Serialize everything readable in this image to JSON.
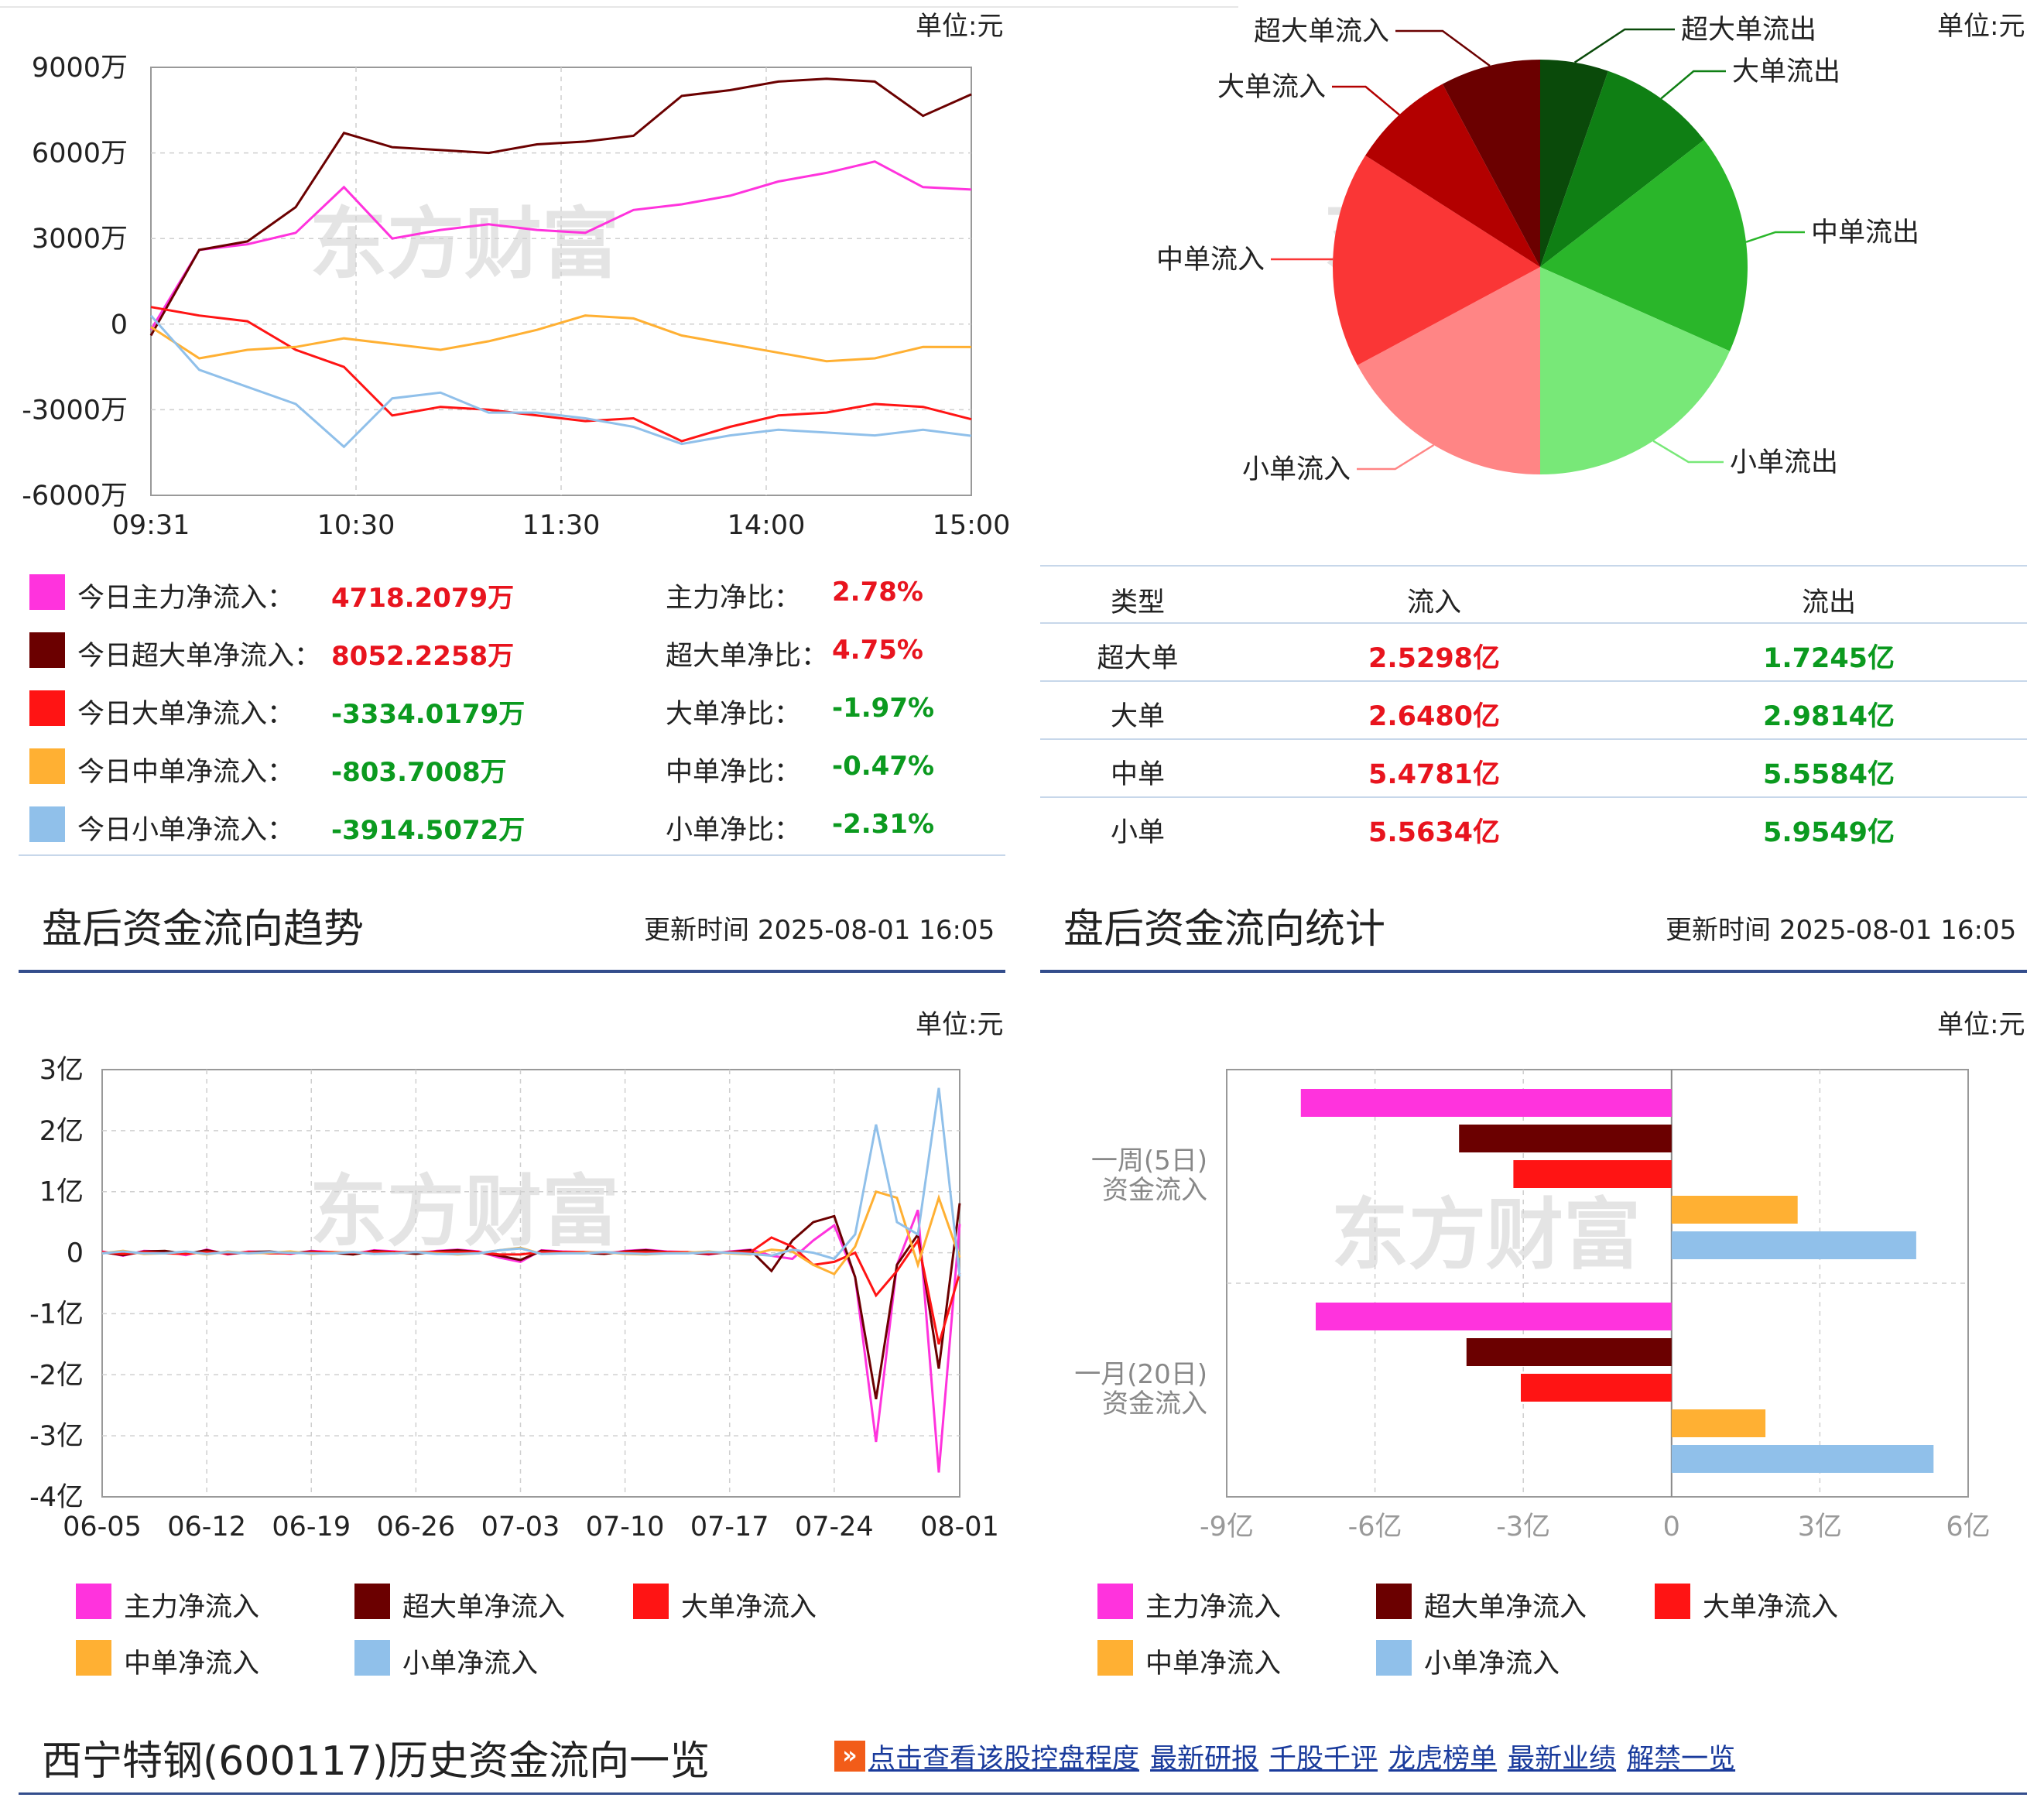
{
  "unit_label": "单位:元",
  "top_line_chart": {
    "y_ticks": [
      "9000万",
      "6000万",
      "3000万",
      "0",
      "-3000万",
      "-6000万"
    ],
    "x_ticks": [
      "09:31",
      "10:30",
      "11:30",
      "14:00",
      "15:00"
    ]
  },
  "chart_data": [
    {
      "type": "line",
      "xlabel": "",
      "ylabel": "",
      "x": [
        "09:31",
        "09:40",
        "10:00",
        "10:15",
        "10:25",
        "10:30",
        "10:45",
        "11:00",
        "11:15",
        "11:30",
        "13:15",
        "13:30",
        "14:00",
        "14:15",
        "14:30",
        "14:45",
        "14:55",
        "15:00"
      ],
      "ylim": [
        -6000,
        9000
      ],
      "y_unit": "万",
      "series": [
        {
          "name": "主力净流入",
          "color": "#ff33dd",
          "values": [
            -200,
            2600,
            2800,
            3200,
            4800,
            3000,
            3300,
            3500,
            3300,
            3200,
            4000,
            4200,
            4500,
            5000,
            5300,
            5700,
            4800,
            4718
          ]
        },
        {
          "name": "超大单净流入",
          "color": "#6b0000",
          "values": [
            -400,
            2600,
            2900,
            4100,
            6700,
            6200,
            6100,
            6000,
            6300,
            6400,
            6600,
            8000,
            8200,
            8500,
            8600,
            8500,
            7300,
            8052
          ]
        },
        {
          "name": "大单净流入",
          "color": "#ff1414",
          "values": [
            600,
            300,
            100,
            -900,
            -1500,
            -3200,
            -2900,
            -3000,
            -3200,
            -3400,
            -3300,
            -4100,
            -3600,
            -3200,
            -3100,
            -2800,
            -2900,
            -3334
          ]
        },
        {
          "name": "中单净流入",
          "color": "#ffb033",
          "values": [
            -100,
            -1200,
            -900,
            -800,
            -500,
            -700,
            -900,
            -600,
            -200,
            300,
            200,
            -400,
            -700,
            -1000,
            -1300,
            -1200,
            -800,
            -804
          ]
        },
        {
          "name": "小单净流入",
          "color": "#90c0ea",
          "values": [
            300,
            -1600,
            -2200,
            -2800,
            -4300,
            -2600,
            -2400,
            -3100,
            -3100,
            -3300,
            -3600,
            -4200,
            -3900,
            -3700,
            -3800,
            -3900,
            -3700,
            -3915
          ]
        }
      ]
    },
    {
      "type": "pie",
      "slices": [
        {
          "label": "超大单流出",
          "value": 1.7245,
          "color": "#0a4a0a"
        },
        {
          "label": "大单流出",
          "value": 2.9814,
          "color": "#0f7f14"
        },
        {
          "label": "中单流出",
          "value": 5.5584,
          "color": "#2ab62a"
        },
        {
          "label": "小单流出",
          "value": 5.9549,
          "color": "#78e878"
        },
        {
          "label": "小单流入",
          "value": 5.5634,
          "color": "#ff8585"
        },
        {
          "label": "中单流入",
          "value": 5.4781,
          "color": "#fa3636"
        },
        {
          "label": "大单流入",
          "value": 2.648,
          "color": "#b30000"
        },
        {
          "label": "超大单流入",
          "value": 2.5298,
          "color": "#6b0000"
        }
      ]
    },
    {
      "type": "line",
      "xlabel": "",
      "ylabel": "",
      "x": [
        "06-05",
        "06-06",
        "06-09",
        "06-10",
        "06-11",
        "06-12",
        "06-13",
        "06-16",
        "06-17",
        "06-18",
        "06-19",
        "06-20",
        "06-23",
        "06-24",
        "06-25",
        "06-26",
        "06-27",
        "06-30",
        "07-01",
        "07-02",
        "07-03",
        "07-04",
        "07-07",
        "07-08",
        "07-09",
        "07-10",
        "07-11",
        "07-14",
        "07-15",
        "07-16",
        "07-17",
        "07-18",
        "07-21",
        "07-22",
        "07-23",
        "07-24",
        "07-25",
        "07-28",
        "07-29",
        "07-30",
        "07-31",
        "08-01"
      ],
      "ylim": [
        -4,
        3
      ],
      "y_unit": "亿",
      "series": [
        {
          "name": "主力净流入",
          "color": "#ff33dd",
          "values": [
            0.02,
            -0.05,
            0.03,
            0.02,
            -0.04,
            0.05,
            -0.03,
            0.02,
            0.01,
            -0.02,
            0.03,
            0.01,
            -0.02,
            0.04,
            0.02,
            -0.01,
            0.03,
            0.05,
            0.02,
            -0.08,
            -0.15,
            0.04,
            0.02,
            0.01,
            -0.02,
            0.03,
            0.05,
            0.02,
            0.01,
            -0.03,
            0.02,
            0.05,
            -0.05,
            -0.1,
            0.2,
            0.45,
            -0.4,
            -3.1,
            -0.2,
            0.7,
            -3.6,
            0.47
          ]
        },
        {
          "name": "超大单净流入",
          "color": "#6b0000",
          "values": [
            0.01,
            -0.04,
            0.02,
            0.03,
            -0.02,
            0.04,
            -0.02,
            0.01,
            0.02,
            -0.01,
            0.02,
            0.0,
            -0.03,
            0.03,
            0.01,
            -0.02,
            0.02,
            0.04,
            0.01,
            -0.05,
            -0.12,
            0.03,
            0.01,
            0.0,
            -0.02,
            0.02,
            0.04,
            0.01,
            0.0,
            -0.02,
            0.01,
            0.04,
            -0.3,
            0.2,
            0.5,
            0.6,
            -0.4,
            -2.4,
            -0.2,
            0.3,
            -1.9,
            0.81
          ]
        },
        {
          "name": "大单净流入",
          "color": "#ff1414",
          "values": [
            0.01,
            -0.02,
            0.01,
            -0.01,
            -0.02,
            0.01,
            -0.01,
            0.01,
            -0.01,
            -0.01,
            0.01,
            0.01,
            0.0,
            0.01,
            0.01,
            0.01,
            0.01,
            0.01,
            0.01,
            -0.03,
            -0.03,
            0.01,
            0.01,
            0.01,
            0.0,
            0.01,
            0.01,
            0.01,
            0.01,
            -0.01,
            0.01,
            0.01,
            0.25,
            0.1,
            -0.2,
            -0.15,
            0.0,
            -0.7,
            -0.3,
            0.2,
            -1.5,
            -0.33
          ]
        },
        {
          "name": "中单净流入",
          "color": "#ffb033",
          "values": [
            -0.01,
            0.03,
            -0.02,
            -0.01,
            0.02,
            -0.03,
            0.02,
            -0.01,
            0.0,
            0.02,
            -0.02,
            0.0,
            0.01,
            -0.02,
            -0.01,
            0.01,
            -0.01,
            -0.03,
            -0.01,
            0.04,
            0.08,
            -0.02,
            -0.01,
            0.0,
            0.01,
            -0.02,
            -0.03,
            -0.01,
            0.0,
            0.02,
            -0.01,
            -0.03,
            0.05,
            0.02,
            -0.2,
            -0.35,
            0.1,
            1.0,
            0.9,
            -0.2,
            0.9,
            -0.08
          ]
        },
        {
          "name": "小单净流入",
          "color": "#90c0ea",
          "values": [
            -0.01,
            0.02,
            -0.01,
            -0.01,
            0.02,
            -0.02,
            0.01,
            -0.01,
            0.01,
            0.0,
            -0.01,
            -0.01,
            0.01,
            -0.02,
            -0.01,
            0.01,
            -0.02,
            -0.02,
            -0.01,
            0.04,
            0.07,
            -0.02,
            -0.01,
            -0.01,
            0.01,
            -0.01,
            -0.02,
            -0.01,
            -0.01,
            0.01,
            0.0,
            -0.02,
            -0.05,
            0.05,
            0.0,
            -0.1,
            0.3,
            2.1,
            0.5,
            0.3,
            2.7,
            -0.39
          ]
        }
      ]
    },
    {
      "type": "bar",
      "orientation": "horizontal",
      "categories": [
        "一周(5日)资金流入",
        "一月(20日)资金流入"
      ],
      "xlim": [
        -9,
        6
      ],
      "x_unit": "亿",
      "series": [
        {
          "name": "主力净流入",
          "color": "#ff33dd",
          "values": [
            -7.5,
            -7.2
          ]
        },
        {
          "name": "超大单净流入",
          "color": "#6b0000",
          "values": [
            -4.3,
            -4.15
          ]
        },
        {
          "name": "大单净流入",
          "color": "#ff1414",
          "values": [
            -3.2,
            -3.05
          ]
        },
        {
          "name": "中单净流入",
          "color": "#ffb033",
          "values": [
            2.55,
            1.9
          ]
        },
        {
          "name": "小单净流入",
          "color": "#90c0ea",
          "values": [
            4.95,
            5.3
          ]
        }
      ]
    }
  ],
  "stats": [
    {
      "label": "今日主力净流入：",
      "value": "4718.2079万",
      "ratio_label": "主力净比：",
      "ratio": "2.78%",
      "color": "#ff33dd",
      "sign": "pos"
    },
    {
      "label": "今日超大单净流入：",
      "value": "8052.2258万",
      "ratio_label": "超大单净比：",
      "ratio": "4.75%",
      "color": "#6b0000",
      "sign": "pos"
    },
    {
      "label": "今日大单净流入：",
      "value": "-3334.0179万",
      "ratio_label": "大单净比：",
      "ratio": "-1.97%",
      "color": "#ff1414",
      "sign": "neg"
    },
    {
      "label": "今日中单净流入：",
      "value": "-803.7008万",
      "ratio_label": "中单净比：",
      "ratio": "-0.47%",
      "color": "#ffb033",
      "sign": "neg"
    },
    {
      "label": "今日小单净流入：",
      "value": "-3914.5072万",
      "ratio_label": "小单净比：",
      "ratio": "-2.31%",
      "color": "#90c0ea",
      "sign": "neg"
    }
  ],
  "flow_table": {
    "headers": [
      "类型",
      "流入",
      "流出"
    ],
    "rows": [
      {
        "type": "超大单",
        "in": "2.5298亿",
        "out": "1.7245亿"
      },
      {
        "type": "大单",
        "in": "2.6480亿",
        "out": "2.9814亿"
      },
      {
        "type": "中单",
        "in": "5.4781亿",
        "out": "5.5584亿"
      },
      {
        "type": "小单",
        "in": "5.5634亿",
        "out": "5.9549亿"
      }
    ]
  },
  "trend_section": {
    "title": "盘后资金流向趋势",
    "update_label": "更新时间",
    "update_time": "2025-08-01 16:05",
    "y_ticks": [
      "3亿",
      "2亿",
      "1亿",
      "0",
      "-1亿",
      "-2亿",
      "-3亿",
      "-4亿"
    ],
    "x_ticks": [
      "06-05",
      "06-12",
      "06-19",
      "06-26",
      "07-03",
      "07-10",
      "07-17",
      "07-24",
      "08-01"
    ]
  },
  "stat_section": {
    "title": "盘后资金流向统计",
    "update_label": "更新时间",
    "update_time": "2025-08-01 16:05",
    "x_ticks": [
      "-9亿",
      "-6亿",
      "-3亿",
      "0",
      "3亿",
      "6亿"
    ],
    "cat_lines": [
      [
        "一周(5日)",
        "资金流入"
      ],
      [
        "一月(20日)",
        "资金流入"
      ]
    ]
  },
  "legend": [
    "主力净流入",
    "超大单净流入",
    "大单净流入",
    "中单净流入",
    "小单净流入"
  ],
  "watermark": "东方财富",
  "history": {
    "title": "西宁特钢(600117)历史资金流向一览",
    "links": [
      "点击查看该股控盘程度",
      "最新研报",
      "千股千评",
      "龙虎榜单",
      "最新业绩",
      "解禁一览"
    ]
  }
}
